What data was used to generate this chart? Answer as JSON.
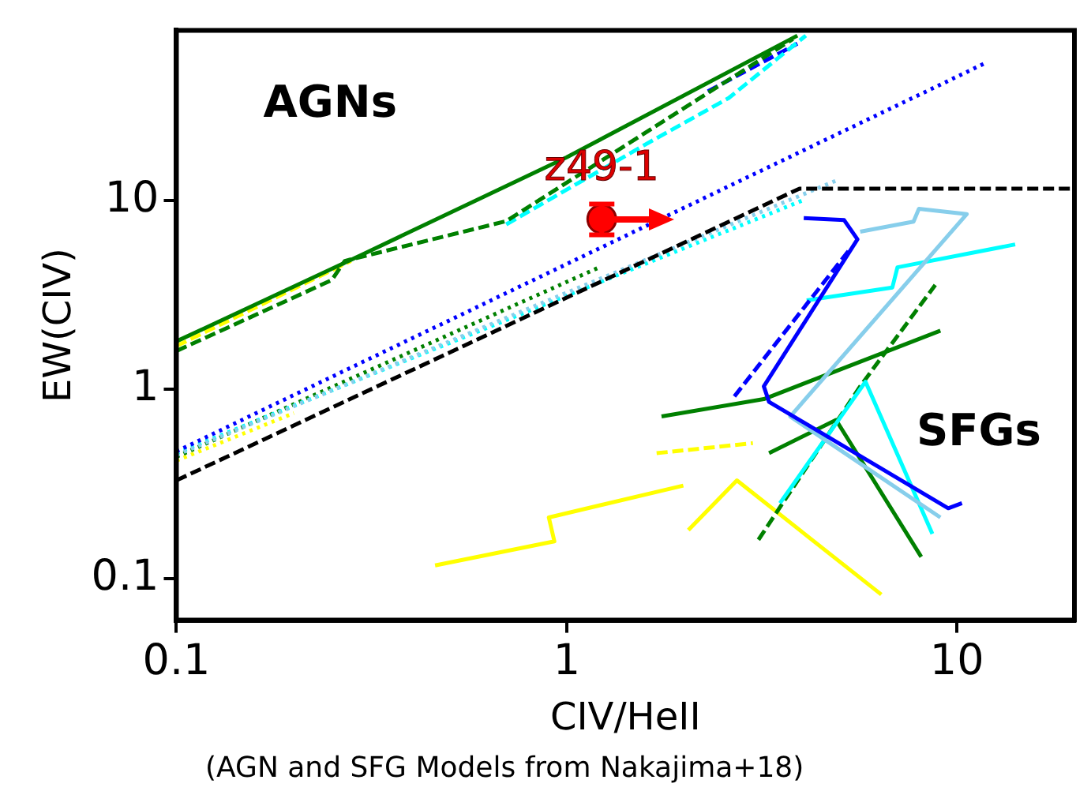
{
  "chart_data": {
    "type": "line",
    "xlabel": "CIV/HeII",
    "ylabel": "EW(CIV)",
    "log": "xy",
    "grid": false,
    "legend": false,
    "marker": "none",
    "xlim": [
      0.1,
      20
    ],
    "ylim": [
      0.06,
      80
    ],
    "xticks": [
      0.1,
      1,
      10
    ],
    "yticks": [
      0.1,
      1,
      10
    ],
    "annotations": [
      {
        "text": "z49-1",
        "x": 1.23,
        "y": 8.0
      },
      "AGNs",
      "SFGs",
      "(AGN and SFG Models from Nakajima+18)"
    ],
    "series": [
      {
        "color": "#000000",
        "line_style": "dashed",
        "x": [
          0.1,
          3.95,
          20
        ],
        "values": [
          0.33,
          11.6,
          11.6
        ]
      },
      {
        "color": "#008000",
        "line_style": "solid",
        "x": [
          0.1,
          0.3,
          1,
          3.9
        ],
        "values": [
          1.8,
          5.2,
          17,
          75
        ]
      },
      {
        "color": "#008000",
        "line_style": "dashed",
        "x": [
          0.1,
          0.25,
          0.27,
          0.7,
          3.8
        ],
        "values": [
          1.6,
          3.8,
          4.8,
          7.8,
          72
        ]
      },
      {
        "color": "#ffff00",
        "line_style": "dashed",
        "x": [
          0.1,
          0.28
        ],
        "values": [
          1.7,
          4.8
        ]
      },
      {
        "color": "#00ffff",
        "line_style": "dashed",
        "x": [
          0.7,
          1.6,
          2.6,
          4.1
        ],
        "values": [
          7.5,
          20,
          35,
          75
        ]
      },
      {
        "color": "#0000ff",
        "line_style": "dashed",
        "x": [
          2.3,
          3.9
        ],
        "values": [
          38,
          68
        ]
      },
      {
        "color": "#0000ff",
        "line_style": "dotted",
        "x": [
          0.1,
          11.9
        ],
        "values": [
          0.47,
          54
        ]
      },
      {
        "color": "#87ceeb",
        "line_style": "dotted",
        "x": [
          0.1,
          5
        ],
        "values": [
          0.45,
          13
        ]
      },
      {
        "color": "#00ffff",
        "line_style": "dotted",
        "x": [
          0.1,
          4
        ],
        "values": [
          0.46,
          10
        ]
      },
      {
        "color": "#008000",
        "line_style": "dotted",
        "x": [
          0.1,
          1.2
        ],
        "values": [
          0.44,
          4.4
        ]
      },
      {
        "color": "#ffff00",
        "line_style": "dotted",
        "x": [
          0.1,
          0.2
        ],
        "values": [
          0.42,
          0.75
        ]
      },
      {
        "color": "#0000ff",
        "line_style": "solid",
        "x": [
          4.05,
          5.14,
          5.56,
          3.2,
          3.3,
          9.5,
          10.3
        ],
        "values": [
          8.1,
          7.9,
          6.25,
          1.04,
          0.86,
          0.235,
          0.25
        ]
      },
      {
        "color": "#0000ff",
        "line_style": "dashed",
        "x": [
          2.69,
          5.3
        ],
        "values": [
          0.92,
          5.5
        ]
      },
      {
        "color": "#87ceeb",
        "line_style": "solid",
        "x": [
          5.65,
          7.74,
          7.99,
          10.6,
          3.74,
          9.07
        ],
        "values": [
          6.86,
          7.76,
          9.06,
          8.5,
          0.72,
          0.21
        ]
      },
      {
        "color": "#00ffff",
        "line_style": "solid",
        "x": [
          4.12,
          6.83,
          7.04,
          14.1
        ],
        "values": [
          2.97,
          3.47,
          4.44,
          5.87
        ]
      },
      {
        "color": "#00ffff",
        "line_style": "solid",
        "x": [
          3.52,
          5.83,
          8.65
        ],
        "values": [
          0.25,
          1.1,
          0.172
        ]
      },
      {
        "color": "#008000",
        "line_style": "solid",
        "x": [
          1.75,
          3.2,
          9.07
        ],
        "values": [
          0.72,
          0.89,
          2.05
        ]
      },
      {
        "color": "#008000",
        "line_style": "solid",
        "x": [
          3.3,
          4.9,
          8.1
        ],
        "values": [
          0.46,
          0.69,
          0.13
        ]
      },
      {
        "color": "#008000",
        "line_style": "dashed",
        "x": [
          3.1,
          5.65,
          8.8
        ],
        "values": [
          0.16,
          1.04,
          3.58
        ]
      },
      {
        "color": "#ffff00",
        "line_style": "solid",
        "x": [
          0.46,
          0.93,
          0.9,
          1.99
        ],
        "values": [
          0.117,
          0.157,
          0.21,
          0.31
        ]
      },
      {
        "color": "#ffff00",
        "line_style": "solid",
        "x": [
          2.05,
          2.73,
          6.4
        ],
        "values": [
          0.18,
          0.33,
          0.082
        ]
      },
      {
        "color": "#ffff00",
        "line_style": "dashed",
        "x": [
          1.7,
          3.0
        ],
        "values": [
          0.46,
          0.52
        ]
      },
      {
        "type": "scatter",
        "marker": "circle",
        "color": "#ff0000",
        "x": [
          1.23
        ],
        "values": [
          8.0
        ],
        "errors": [
          [
            6.6,
            9.6
          ]
        ]
      }
    ]
  }
}
